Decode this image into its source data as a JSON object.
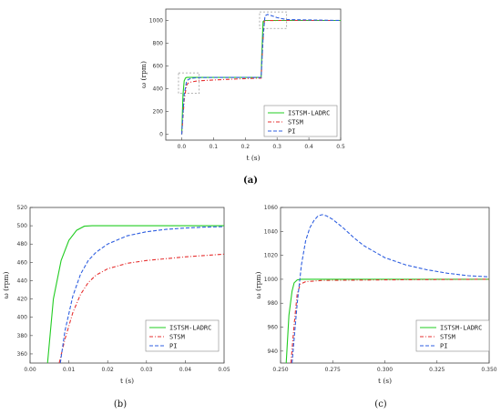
{
  "colors": {
    "ISTSM-LADRC": "#22cc22",
    "STSM": "#e63030",
    "PI": "#2f5fe0",
    "zoom_box": "#999999"
  },
  "chart_data": [
    {
      "panel": "(a)",
      "type": "line",
      "xlabel": "t (s)",
      "ylabel": "ω (rpm)",
      "xlim": [
        -0.05,
        0.5
      ],
      "ylim": [
        -50,
        1100
      ],
      "xticks": [
        0.0,
        0.1,
        0.2,
        0.3,
        0.4,
        0.5
      ],
      "xtick_labels": [
        "0.0",
        "0.1",
        "0.2",
        "0.3",
        "0.4",
        "0.5"
      ],
      "yticks": [
        0,
        200,
        400,
        600,
        800,
        1000
      ],
      "ytick_labels": [
        "0",
        "200",
        "400",
        "600",
        "800",
        "1000"
      ],
      "legend_position": "lower-right",
      "zoom_boxes": [
        {
          "x": [
            -0.01,
            0.055
          ],
          "y": [
            360,
            540
          ]
        },
        {
          "x": [
            0.245,
            0.33
          ],
          "y": [
            930,
            1075
          ]
        }
      ],
      "series": [
        {
          "name": "ISTSM-LADRC",
          "style": "solid",
          "x": [
            0,
            0.004,
            0.008,
            0.012,
            0.016,
            0.03,
            0.25,
            0.252,
            0.256,
            0.26,
            0.28,
            0.5
          ],
          "y": [
            0,
            350,
            470,
            495,
            500,
            500,
            500,
            700,
            990,
            1000,
            1000,
            1000
          ]
        },
        {
          "name": "STSM",
          "style": "dashdot",
          "x": [
            0,
            0.008,
            0.015,
            0.02,
            0.03,
            0.05,
            0.1,
            0.2,
            0.25,
            0.255,
            0.26,
            0.265,
            0.3,
            0.5
          ],
          "y": [
            0,
            300,
            430,
            450,
            460,
            470,
            478,
            490,
            495,
            800,
            998,
            999,
            1000,
            1000
          ]
        },
        {
          "name": "PI",
          "style": "dashed",
          "x": [
            0,
            0.008,
            0.015,
            0.02,
            0.03,
            0.05,
            0.1,
            0.25,
            0.256,
            0.262,
            0.27,
            0.285,
            0.3,
            0.33,
            0.5
          ],
          "y": [
            0,
            350,
            460,
            480,
            492,
            499,
            500,
            500,
            850,
            1040,
            1054,
            1040,
            1025,
            1008,
            1000
          ]
        }
      ]
    },
    {
      "panel": "(b)",
      "type": "line",
      "xlabel": "t (s)",
      "ylabel": "ω (rpm)",
      "xlim": [
        0.0,
        0.05
      ],
      "ylim": [
        350,
        520
      ],
      "xticks": [
        0.0,
        0.01,
        0.02,
        0.03,
        0.04,
        0.05
      ],
      "xtick_labels": [
        "0.00",
        "0.01",
        "0.02",
        "0.03",
        "0.04",
        "0.05"
      ],
      "yticks": [
        360,
        380,
        400,
        420,
        440,
        460,
        480,
        500,
        520
      ],
      "ytick_labels": [
        "360",
        "380",
        "400",
        "420",
        "440",
        "460",
        "480",
        "500",
        "520"
      ],
      "legend_position": "lower-right",
      "series": [
        {
          "name": "ISTSM-LADRC",
          "style": "solid",
          "x": [
            0.0045,
            0.006,
            0.008,
            0.01,
            0.012,
            0.014,
            0.016,
            0.02,
            0.05
          ],
          "y": [
            350,
            420,
            462,
            484,
            495,
            499.5,
            500,
            500,
            500
          ]
        },
        {
          "name": "STSM",
          "style": "dashdot",
          "x": [
            0.0075,
            0.009,
            0.011,
            0.013,
            0.015,
            0.017,
            0.02,
            0.025,
            0.03,
            0.035,
            0.04,
            0.045,
            0.05
          ],
          "y": [
            350,
            376,
            405,
            425,
            438,
            446,
            453,
            459,
            462,
            464,
            466,
            467.5,
            469
          ]
        },
        {
          "name": "PI",
          "style": "dashed",
          "x": [
            0.0078,
            0.009,
            0.011,
            0.013,
            0.015,
            0.017,
            0.02,
            0.025,
            0.03,
            0.035,
            0.04,
            0.045,
            0.05
          ],
          "y": [
            350,
            385,
            423,
            447,
            462,
            471,
            480,
            489,
            493.5,
            496,
            497.5,
            498.5,
            499
          ]
        }
      ]
    },
    {
      "panel": "(c)",
      "type": "line",
      "xlabel": "t (s)",
      "ylabel": "ω (rpm)",
      "xlim": [
        0.25,
        0.35
      ],
      "ylim": [
        930,
        1060
      ],
      "xticks": [
        0.25,
        0.275,
        0.3,
        0.325,
        0.35
      ],
      "xtick_labels": [
        "0.250",
        "0.275",
        "0.300",
        "0.325",
        "0.350"
      ],
      "yticks": [
        940,
        960,
        980,
        1000,
        1020,
        1040,
        1060
      ],
      "ytick_labels": [
        "940",
        "960",
        "980",
        "1000",
        "1020",
        "1040",
        "1060"
      ],
      "legend_position": "lower-right",
      "series": [
        {
          "name": "ISTSM-LADRC",
          "style": "solid",
          "x": [
            0.2527,
            0.254,
            0.2555,
            0.2565,
            0.258,
            0.26,
            0.265,
            0.35
          ],
          "y": [
            930,
            970,
            990,
            997,
            999.5,
            1000,
            1000,
            1000
          ]
        },
        {
          "name": "STSM",
          "style": "dashdot",
          "x": [
            0.255,
            0.2565,
            0.258,
            0.2595,
            0.262,
            0.27,
            0.3,
            0.35
          ],
          "y": [
            930,
            962,
            988,
            996,
            998,
            999,
            999.5,
            1000
          ]
        },
        {
          "name": "PI",
          "style": "dashed",
          "x": [
            0.2555,
            0.258,
            0.26,
            0.262,
            0.264,
            0.266,
            0.268,
            0.27,
            0.272,
            0.275,
            0.28,
            0.285,
            0.29,
            0.3,
            0.31,
            0.32,
            0.33,
            0.34,
            0.35
          ],
          "y": [
            930,
            980,
            1012,
            1032,
            1043,
            1049,
            1053,
            1054,
            1053,
            1050,
            1043,
            1035,
            1028,
            1018,
            1012,
            1008,
            1005,
            1003,
            1002
          ]
        }
      ]
    }
  ]
}
